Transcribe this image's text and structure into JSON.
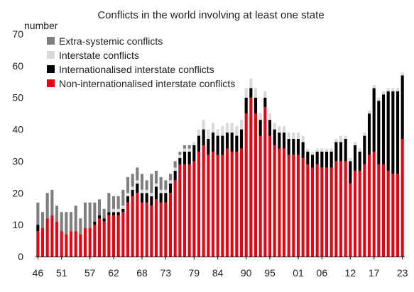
{
  "chart_data": {
    "type": "bar",
    "stacked": true,
    "title": "Conflicts in the world involving at least one state",
    "ylabel": "number",
    "ylim": [
      0,
      70
    ],
    "yticks": [
      0,
      10,
      20,
      30,
      40,
      50,
      60,
      70
    ],
    "x": [
      1946,
      1947,
      1948,
      1949,
      1950,
      1951,
      1952,
      1953,
      1954,
      1955,
      1956,
      1957,
      1958,
      1959,
      1960,
      1961,
      1962,
      1963,
      1964,
      1965,
      1966,
      1967,
      1968,
      1969,
      1970,
      1971,
      1972,
      1973,
      1974,
      1975,
      1976,
      1977,
      1978,
      1979,
      1980,
      1981,
      1982,
      1983,
      1984,
      1985,
      1986,
      1987,
      1988,
      1989,
      1990,
      1991,
      1992,
      1993,
      1994,
      1995,
      1996,
      1997,
      1998,
      1999,
      2000,
      2001,
      2002,
      2003,
      2004,
      2005,
      2006,
      2007,
      2008,
      2009,
      2010,
      2011,
      2012,
      2013,
      2014,
      2015,
      2016,
      2017,
      2018,
      2019,
      2020,
      2021,
      2022,
      2023
    ],
    "xtick_labels": [
      "46",
      "51",
      "57",
      "62",
      "68",
      "73",
      "79",
      "84",
      "90",
      "95",
      "01",
      "06",
      "12",
      "17",
      "23"
    ],
    "xtick_years": [
      1946,
      1951,
      1957,
      1962,
      1968,
      1973,
      1979,
      1984,
      1990,
      1995,
      2001,
      2006,
      2012,
      2017,
      2023
    ],
    "grid": false,
    "legend_position": "top-left",
    "series": [
      {
        "name": "Non-internationalised interstate conflicts",
        "color": "#e30613",
        "values": [
          8,
          9,
          12,
          13,
          11,
          8,
          7,
          8,
          8,
          7,
          9,
          9,
          10,
          12,
          11,
          13,
          13,
          13,
          14,
          17,
          19,
          20,
          17,
          17,
          16,
          18,
          17,
          17,
          20,
          24,
          29,
          29,
          29,
          30,
          33,
          35,
          32,
          33,
          32,
          32,
          34,
          33,
          33,
          34,
          45,
          50,
          45,
          38,
          47,
          38,
          35,
          34,
          34,
          32,
          32,
          32,
          31,
          29,
          28,
          29,
          28,
          28,
          28,
          30,
          30,
          30,
          23,
          27,
          27,
          29,
          32,
          33,
          29,
          29,
          27,
          26,
          26,
          37
        ]
      },
      {
        "name": "Internationalised interstate conflicts",
        "color": "#000000",
        "values": [
          2,
          0,
          0,
          0,
          0,
          0,
          0,
          0,
          0,
          0,
          0,
          0,
          1,
          1,
          1,
          1,
          1,
          1,
          1,
          2,
          2,
          3,
          3,
          3,
          3,
          4,
          3,
          3,
          3,
          3,
          2,
          4,
          4,
          5,
          5,
          5,
          5,
          6,
          6,
          6,
          5,
          6,
          5,
          6,
          5,
          3,
          5,
          5,
          3,
          5,
          5,
          5,
          5,
          5,
          5,
          5,
          5,
          4,
          4,
          4,
          5,
          5,
          5,
          6,
          6,
          7,
          7,
          8,
          6,
          9,
          13,
          20,
          20,
          22,
          25,
          26,
          26,
          20
        ]
      },
      {
        "name": "Interstate conflicts",
        "color": "#d9d9d9",
        "values": [
          0,
          0,
          0,
          0,
          0,
          0,
          0,
          0,
          0,
          0,
          0,
          0,
          0,
          0,
          0,
          0,
          1,
          1,
          1,
          1,
          1,
          1,
          1,
          1,
          1,
          1,
          1,
          1,
          1,
          1,
          1,
          1,
          1,
          1,
          2,
          3,
          3,
          3,
          2,
          3,
          3,
          3,
          3,
          3,
          3,
          3,
          3,
          2,
          2,
          2,
          2,
          2,
          2,
          2,
          2,
          2,
          2,
          1,
          1,
          1,
          1,
          1,
          1,
          1,
          2,
          1,
          1,
          1,
          1,
          1,
          1,
          1,
          1,
          1,
          1,
          1,
          1,
          1
        ]
      },
      {
        "name": "Extra-systemic conflicts",
        "color": "#7f7f7f",
        "values": [
          7,
          5,
          8,
          8,
          5,
          6,
          7,
          6,
          8,
          5,
          8,
          8,
          6,
          5,
          3,
          6,
          4,
          4,
          5,
          5,
          4,
          4,
          5,
          3,
          6,
          4,
          4,
          3,
          2,
          2,
          1,
          1,
          1,
          0,
          0,
          0,
          0,
          0,
          0,
          0,
          0,
          0,
          0,
          0,
          0,
          0,
          0,
          0,
          0,
          0,
          0,
          0,
          0,
          0,
          0,
          0,
          0,
          0,
          0,
          0,
          0,
          0,
          0,
          0,
          0,
          0,
          0,
          0,
          0,
          0,
          0,
          0,
          0,
          0,
          0,
          0,
          0,
          0
        ]
      }
    ],
    "legend_order": [
      "Extra-systemic conflicts",
      "Interstate conflicts",
      "Internationalised interstate conflicts",
      "Non-internationalised interstate conflicts"
    ]
  }
}
